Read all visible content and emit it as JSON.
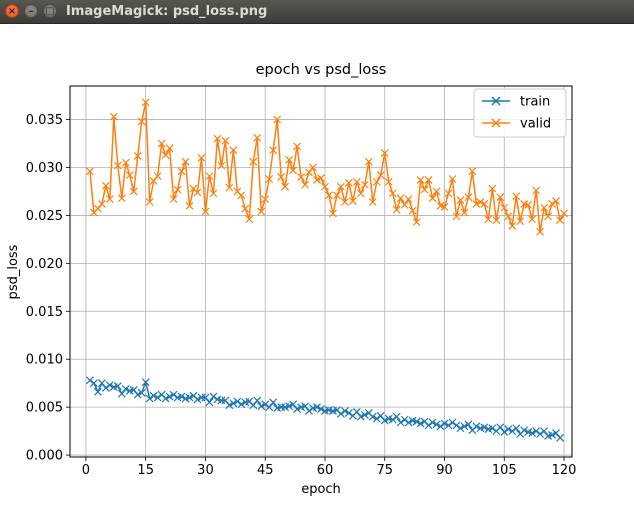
{
  "window": {
    "title": "ImageMagick: psd_loss.png",
    "close_glyph": "×",
    "minimize_glyph": "–",
    "maximize_glyph": "□"
  },
  "chart_data": {
    "type": "line",
    "title": "epoch vs psd_loss",
    "xlabel": "epoch",
    "ylabel": "psd_loss",
    "xlim": [
      -4,
      122
    ],
    "ylim": [
      -0.0002,
      0.0385
    ],
    "xticks": [
      0,
      15,
      30,
      45,
      60,
      75,
      90,
      105,
      120
    ],
    "yticks": [
      0.0,
      0.005,
      0.01,
      0.015,
      0.02,
      0.025,
      0.03,
      0.035
    ],
    "ytick_labels": [
      "0.000",
      "0.005",
      "0.010",
      "0.015",
      "0.020",
      "0.025",
      "0.030",
      "0.035"
    ],
    "grid": true,
    "legend_position": "top-right",
    "marker": "x",
    "series": [
      {
        "name": "train",
        "color": "#1f77b4",
        "values": [
          0.0078,
          0.0075,
          0.0066,
          0.0075,
          0.007,
          0.0073,
          0.0071,
          0.0072,
          0.0064,
          0.0069,
          0.0067,
          0.0068,
          0.0063,
          0.0065,
          0.0076,
          0.0059,
          0.0062,
          0.006,
          0.0063,
          0.0059,
          0.0061,
          0.0063,
          0.006,
          0.0061,
          0.0059,
          0.006,
          0.0062,
          0.0058,
          0.006,
          0.006,
          0.0055,
          0.0061,
          0.0058,
          0.0057,
          0.0057,
          0.0052,
          0.0054,
          0.0056,
          0.0053,
          0.0055,
          0.0056,
          0.0052,
          0.0057,
          0.0051,
          0.0053,
          0.005,
          0.0055,
          0.0049,
          0.005,
          0.005,
          0.0051,
          0.0053,
          0.0048,
          0.005,
          0.0051,
          0.0046,
          0.0049,
          0.005,
          0.0048,
          0.0046,
          0.0047,
          0.0046,
          0.0047,
          0.0043,
          0.0046,
          0.0044,
          0.0041,
          0.0045,
          0.004,
          0.0042,
          0.0044,
          0.004,
          0.0038,
          0.0041,
          0.0036,
          0.0038,
          0.0037,
          0.004,
          0.0034,
          0.0037,
          0.0034,
          0.0036,
          0.0035,
          0.0033,
          0.0035,
          0.0031,
          0.0034,
          0.0032,
          0.003,
          0.0033,
          0.0031,
          0.0034,
          0.0031,
          0.0028,
          0.003,
          0.0032,
          0.0026,
          0.003,
          0.0028,
          0.0029,
          0.0027,
          0.0028,
          0.0025,
          0.0029,
          0.0024,
          0.0027,
          0.0025,
          0.0028,
          0.0022,
          0.0026,
          0.0024,
          0.0023,
          0.0025,
          0.0022,
          0.0025,
          0.002,
          0.0021,
          0.0023,
          0.0018
        ]
      },
      {
        "name": "valid",
        "color": "#ff7f0e",
        "values": [
          0.0296,
          0.0253,
          0.0257,
          0.0262,
          0.0281,
          0.0267,
          0.0353,
          0.0302,
          0.0268,
          0.0305,
          0.0292,
          0.0275,
          0.0312,
          0.0348,
          0.0368,
          0.0264,
          0.0286,
          0.0291,
          0.0325,
          0.0313,
          0.032,
          0.0267,
          0.0277,
          0.0296,
          0.0306,
          0.026,
          0.0278,
          0.0274,
          0.031,
          0.0254,
          0.0291,
          0.0273,
          0.033,
          0.0302,
          0.0328,
          0.0279,
          0.0318,
          0.0275,
          0.0271,
          0.0257,
          0.0246,
          0.0306,
          0.0331,
          0.0254,
          0.0267,
          0.0288,
          0.0318,
          0.035,
          0.029,
          0.028,
          0.0308,
          0.0297,
          0.0322,
          0.029,
          0.0282,
          0.0295,
          0.03,
          0.0287,
          0.0289,
          0.028,
          0.0271,
          0.0252,
          0.0271,
          0.028,
          0.0264,
          0.0284,
          0.0265,
          0.0285,
          0.0273,
          0.0282,
          0.0306,
          0.0264,
          0.0285,
          0.0292,
          0.0315,
          0.0285,
          0.0273,
          0.0256,
          0.0268,
          0.0261,
          0.0267,
          0.0255,
          0.0243,
          0.0287,
          0.0277,
          0.0287,
          0.0268,
          0.0275,
          0.026,
          0.0259,
          0.0273,
          0.0288,
          0.0249,
          0.0266,
          0.0253,
          0.0269,
          0.0296,
          0.0262,
          0.0264,
          0.0262,
          0.0246,
          0.0278,
          0.0245,
          0.0269,
          0.0258,
          0.0249,
          0.0239,
          0.027,
          0.0244,
          0.0262,
          0.0261,
          0.0246,
          0.0276,
          0.0233,
          0.0258,
          0.0249,
          0.0262,
          0.0265,
          0.0245,
          0.0252
        ]
      }
    ]
  }
}
